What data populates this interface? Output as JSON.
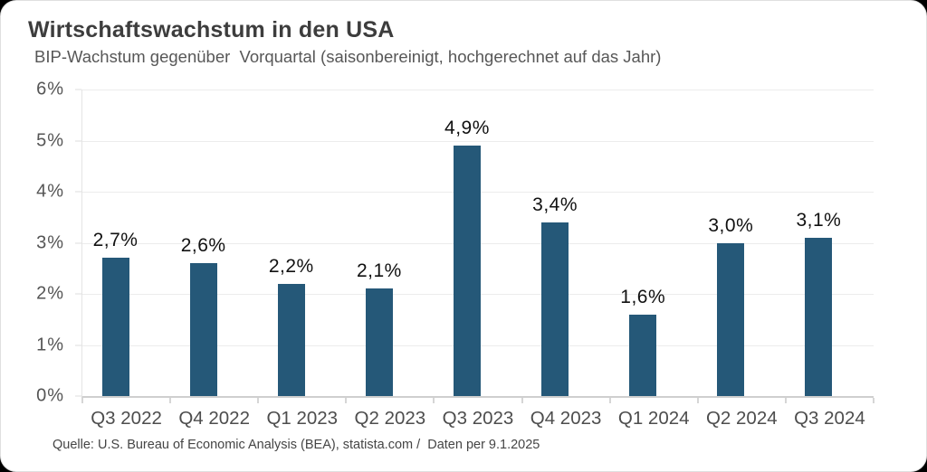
{
  "header": {
    "title": "Wirtschaftswachstum in den USA",
    "subtitle": "BIP-Wachstum gegenüber  Vorquartal (saisonbereinigt, hochgerechnet auf das Jahr)"
  },
  "footer": {
    "source": "Quelle: U.S. Bureau of Economic Analysis (BEA), statista.com /  Daten per 9.1.2025"
  },
  "colors": {
    "bar": "#255878",
    "title_text": "#3d3d3d",
    "subtitle_text": "#575757",
    "axis_text": "#555555",
    "value_label_text": "#111111",
    "source_text": "#454545",
    "gridline": "#ececec",
    "card_background": "#ffffff",
    "page_background": "#000000"
  },
  "chart_data": {
    "type": "bar",
    "title": "Wirtschaftswachstum in den USA",
    "subtitle": "BIP-Wachstum gegenüber  Vorquartal (saisonbereinigt, hochgerechnet auf das Jahr)",
    "categories": [
      "Q3 2022",
      "Q4 2022",
      "Q1 2023",
      "Q2 2023",
      "Q3 2023",
      "Q4 2023",
      "Q1 2024",
      "Q2 2024",
      "Q3 2024"
    ],
    "values": [
      2.7,
      2.6,
      2.2,
      2.1,
      4.9,
      3.4,
      1.6,
      3.0,
      3.1
    ],
    "value_labels": [
      "2,7%",
      "2,6%",
      "2,2%",
      "2,1%",
      "4,9%",
      "3,4%",
      "1,6%",
      "3,0%",
      "3,1%"
    ],
    "unit": "%",
    "xlabel": "",
    "ylabel": "",
    "ylim": [
      0,
      6
    ],
    "y_tick_values": [
      0,
      1,
      2,
      3,
      4,
      5,
      6
    ],
    "y_tick_labels": [
      "0%",
      "1%",
      "2%",
      "3%",
      "4%",
      "5%",
      "6%"
    ],
    "grid": "horizontal",
    "legend": "none",
    "bar_color": "#255878",
    "source": "Quelle: U.S. Bureau of Economic Analysis (BEA), statista.com /  Daten per 9.1.2025"
  }
}
